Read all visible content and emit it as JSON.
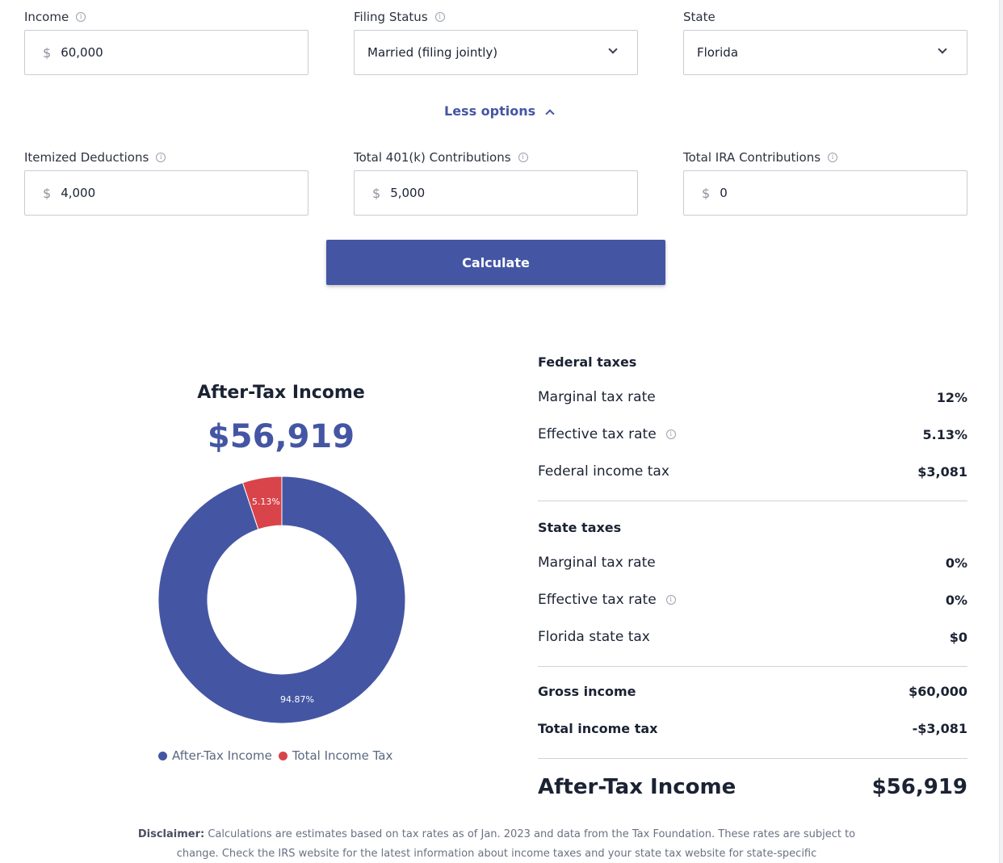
{
  "inputs": {
    "income": {
      "label": "Income",
      "currency": "$",
      "value": "60,000"
    },
    "filing_status": {
      "label": "Filing Status",
      "value": "Married (filing jointly)"
    },
    "state": {
      "label": "State",
      "value": "Florida"
    },
    "itemized_deductions": {
      "label": "Itemized Deductions",
      "currency": "$",
      "value": "4,000"
    },
    "contrib_401k": {
      "label": "Total 401(k) Contributions",
      "currency": "$",
      "value": "5,000"
    },
    "contrib_ira": {
      "label": "Total IRA Contributions",
      "currency": "$",
      "value": "0"
    }
  },
  "less_options_label": "Less options",
  "calculate_label": "Calculate",
  "result": {
    "title": "After-Tax Income",
    "amount": "$56,919"
  },
  "chart_data": {
    "type": "pie",
    "categories": [
      "After-Tax Income",
      "Total Income Tax"
    ],
    "values": [
      94.87,
      5.13
    ],
    "labels": [
      "94.87%",
      "5.13%"
    ],
    "colors": [
      "#4456a3",
      "#d9434a"
    ],
    "legend": "bottom"
  },
  "federal": {
    "heading": "Federal taxes",
    "rows": [
      {
        "label": "Marginal tax rate",
        "value": "12%"
      },
      {
        "label": "Effective tax rate",
        "value": "5.13%"
      },
      {
        "label": "Federal income tax",
        "value": "$3,081"
      }
    ]
  },
  "state_taxes": {
    "heading": "State taxes",
    "rows": [
      {
        "label": "Marginal tax rate",
        "value": "0%"
      },
      {
        "label": "Effective tax rate",
        "value": "0%"
      },
      {
        "label": "Florida state tax",
        "value": "$0"
      }
    ]
  },
  "totals": {
    "gross": {
      "label": "Gross income",
      "value": "$60,000"
    },
    "total_tax": {
      "label": "Total income tax",
      "value": "-$3,081"
    },
    "after_tax": {
      "label": "After-Tax Income",
      "value": "$56,919"
    }
  },
  "disclaimer": {
    "label": "Disclaimer:",
    "text": "Calculations are estimates based on tax rates as of Jan. 2023 and data from the Tax Foundation. These rates are subject to change. Check the IRS website for the latest information about income taxes and your state tax website for state-specific"
  },
  "icons": {
    "info": "info-icon",
    "chevron_down": "chevron-down-icon",
    "chevron_up": "chevron-up-icon"
  }
}
